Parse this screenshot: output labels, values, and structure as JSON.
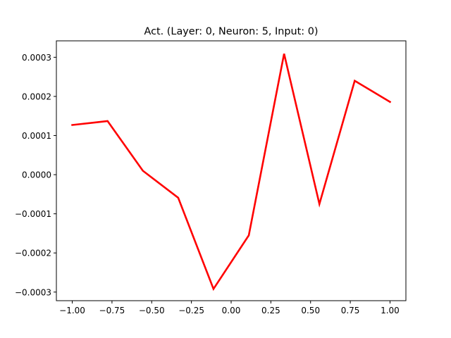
{
  "chart_data": {
    "type": "line",
    "title": "Act. (Layer: 0, Neuron: 5, Input: 0)",
    "xlabel": "",
    "ylabel": "",
    "xlim": [
      -1.1,
      1.1
    ],
    "ylim": [
      -0.000322,
      0.000342
    ],
    "grid": false,
    "x_ticks": [
      -1.0,
      -0.75,
      -0.5,
      -0.25,
      0.0,
      0.25,
      0.5,
      0.75,
      1.0
    ],
    "x_tick_labels": [
      "−1.00",
      "−0.75",
      "−0.50",
      "−0.25",
      "0.00",
      "0.25",
      "0.50",
      "0.75",
      "1.00"
    ],
    "y_ticks": [
      -0.0003,
      -0.0002,
      -0.0001,
      0.0,
      0.0001,
      0.0002,
      0.0003
    ],
    "y_tick_labels": [
      "−0.0003",
      "−0.0002",
      "−0.0001",
      "0.0000",
      "0.0001",
      "0.0002",
      "0.0003"
    ],
    "series": [
      {
        "color": "#ff0000",
        "x": [
          -1.0,
          -0.7778,
          -0.5556,
          -0.3333,
          -0.1111,
          0.1111,
          0.3333,
          0.5556,
          0.7778,
          1.0
        ],
        "y": [
          0.000127,
          0.000137,
          1e-05,
          -5.9e-05,
          -0.000292,
          -0.000155,
          0.000309,
          -7.5e-05,
          0.00024,
          0.000186
        ]
      }
    ]
  }
}
